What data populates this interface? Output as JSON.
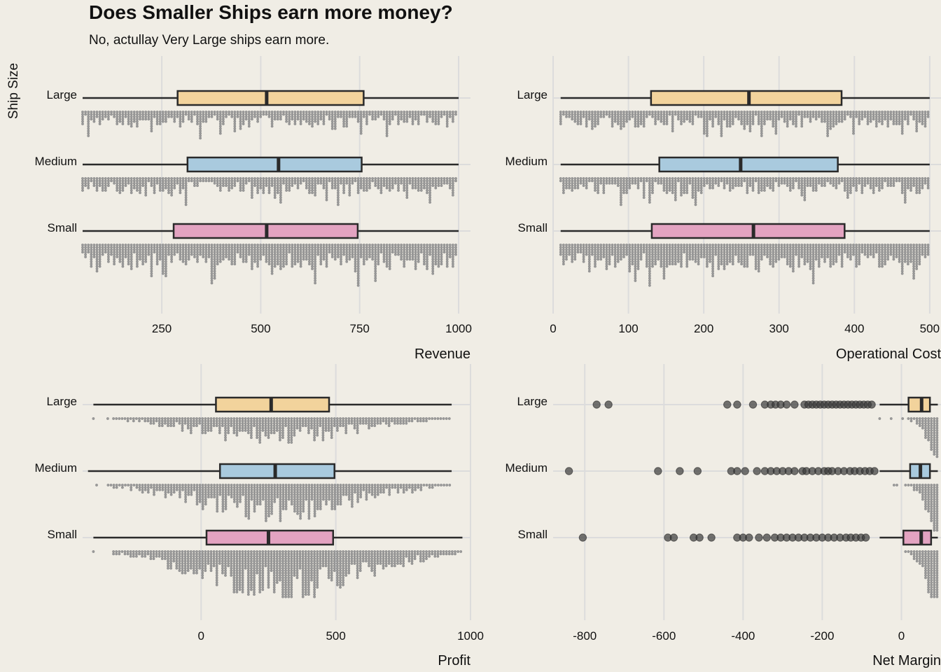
{
  "title": "Does Smaller Ships earn more money?",
  "subtitle": "No, actullay Very Large ships earn more.",
  "y_axis_label": "Ship Size",
  "colors": {
    "background": "#f0ede5",
    "grid": "#dcdcdc",
    "box_stroke": "#2a2a2a",
    "dots": "#9a9a9a",
    "outlier": "#3a3a3a",
    "Large": "#f2d39c",
    "Medium": "#a9cade",
    "Small": "#e3a3c1"
  },
  "chart_data": [
    {
      "type": "boxplot",
      "overlay": "dotplot",
      "xlabel": "Revenue",
      "ylabel": "Ship Size",
      "xlim": [
        50,
        1030
      ],
      "xticks": [
        250,
        500,
        750,
        1000
      ],
      "categories": [
        "Large",
        "Medium",
        "Small"
      ],
      "boxes": [
        {
          "name": "Large",
          "min": 50,
          "q1": 290,
          "median": 515,
          "q3": 760,
          "max": 1000,
          "outliers": []
        },
        {
          "name": "Medium",
          "min": 50,
          "q1": 315,
          "median": 545,
          "q3": 755,
          "max": 1000,
          "outliers": []
        },
        {
          "name": "Small",
          "min": 50,
          "q1": 280,
          "median": 515,
          "q3": 745,
          "max": 1000,
          "outliers": []
        }
      ]
    },
    {
      "type": "boxplot",
      "overlay": "dotplot",
      "xlabel": "Operational Cost",
      "ylabel": "Ship Size",
      "xlim": [
        0,
        515
      ],
      "xticks": [
        0,
        100,
        200,
        300,
        400,
        500
      ],
      "categories": [
        "Large",
        "Medium",
        "Small"
      ],
      "boxes": [
        {
          "name": "Large",
          "min": 10,
          "q1": 130,
          "median": 260,
          "q3": 383,
          "max": 500,
          "outliers": []
        },
        {
          "name": "Medium",
          "min": 10,
          "q1": 141,
          "median": 249,
          "q3": 378,
          "max": 500,
          "outliers": []
        },
        {
          "name": "Small",
          "min": 10,
          "q1": 131,
          "median": 266,
          "q3": 387,
          "max": 500,
          "outliers": []
        }
      ]
    },
    {
      "type": "boxplot",
      "overlay": "dotplot",
      "xlabel": "Profit",
      "ylabel": "Ship Size",
      "xlim": [
        -440,
        1000
      ],
      "xticks": [
        0,
        500,
        1000
      ],
      "categories": [
        "Large",
        "Medium",
        "Small"
      ],
      "boxes": [
        {
          "name": "Large",
          "min": -400,
          "q1": 55,
          "median": 260,
          "q3": 475,
          "max": 930,
          "outliers": []
        },
        {
          "name": "Medium",
          "min": -420,
          "q1": 70,
          "median": 275,
          "q3": 495,
          "max": 930,
          "outliers": []
        },
        {
          "name": "Small",
          "min": -400,
          "q1": 20,
          "median": 250,
          "q3": 490,
          "max": 970,
          "outliers": []
        }
      ]
    },
    {
      "type": "boxplot",
      "overlay": "dotplot",
      "xlabel": "Net Margin",
      "ylabel": "Ship Size",
      "xlim": [
        -880,
        100
      ],
      "xticks": [
        -800,
        -600,
        -400,
        -200,
        0
      ],
      "categories": [
        "Large",
        "Medium",
        "Small"
      ],
      "boxes": [
        {
          "name": "Large",
          "min": -55,
          "q1": 18,
          "median": 51,
          "q3": 72,
          "max": 92,
          "outliers": [
            -770,
            -740,
            -440,
            -415,
            -375,
            -345,
            -330,
            -318,
            -305,
            -290,
            -270,
            -245,
            -235,
            -225,
            -215,
            -205,
            -195,
            -185,
            -175,
            -165,
            -155,
            -145,
            -135,
            -125,
            -115,
            -105,
            -95,
            -85,
            -75
          ]
        },
        {
          "name": "Medium",
          "min": -55,
          "q1": 22,
          "median": 48,
          "q3": 72,
          "max": 92,
          "outliers": [
            -840,
            -615,
            -560,
            -515,
            -430,
            -415,
            -395,
            -365,
            -345,
            -330,
            -315,
            -300,
            -285,
            -270,
            -250,
            -240,
            -225,
            -210,
            -195,
            -185,
            -175,
            -160,
            -145,
            -130,
            -118,
            -105,
            -92,
            -80,
            -68
          ]
        },
        {
          "name": "Small",
          "min": -55,
          "q1": 5,
          "median": 50,
          "q3": 75,
          "max": 92,
          "outliers": [
            -805,
            -590,
            -575,
            -525,
            -510,
            -480,
            -415,
            -400,
            -385,
            -360,
            -340,
            -320,
            -305,
            -290,
            -275,
            -260,
            -245,
            -230,
            -215,
            -200,
            -185,
            -170,
            -155,
            -140,
            -128,
            -115,
            -102,
            -90
          ]
        }
      ]
    }
  ]
}
